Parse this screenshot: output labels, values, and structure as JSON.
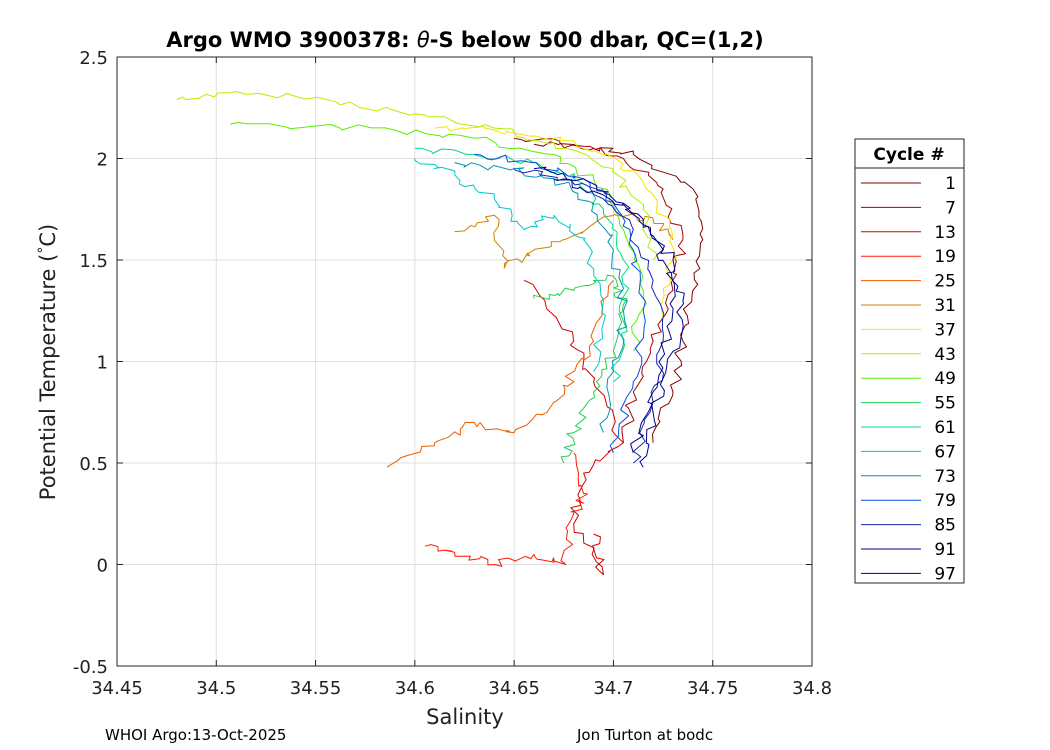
{
  "chart_data": {
    "type": "line",
    "title_prefix": "Argo WMO 3900378: ",
    "title_symbol": "θ",
    "title_suffix": "-S below 500 dbar,  QC=(1,2)",
    "xlabel": "Salinity",
    "ylabel_prefix": "Potential Temperature (",
    "ylabel_degree": "°",
    "ylabel_suffix": "C)",
    "xlim": [
      34.45,
      34.8
    ],
    "ylim": [
      -0.5,
      2.5
    ],
    "x_ticks": [
      34.45,
      34.5,
      34.55,
      34.6,
      34.65,
      34.7,
      34.75,
      34.8
    ],
    "x_tick_labels": [
      "34.45",
      "34.5",
      "34.55",
      "34.6",
      "34.65",
      "34.7",
      "34.75",
      "34.8"
    ],
    "y_ticks": [
      -0.5,
      0,
      0.5,
      1,
      1.5,
      2,
      2.5
    ],
    "y_tick_labels": [
      "-0.5",
      "0",
      "0.5",
      "1",
      "1.5",
      "2",
      "2.5"
    ],
    "grid": true,
    "legend": {
      "title": "Cycle #",
      "placement": "right",
      "entries": [
        "1",
        "7",
        "13",
        "19",
        "25",
        "31",
        "37",
        "43",
        "49",
        "55",
        "61",
        "67",
        "73",
        "79",
        "85",
        "91",
        "97"
      ],
      "colors": [
        "#800000",
        "#aa0000",
        "#d40000",
        "#ff1a00",
        "#f25a00",
        "#d08000",
        "#f2e600",
        "#b4f000",
        "#5aed00",
        "#1ed250",
        "#00dc82",
        "#00c8c8",
        "#0096b4",
        "#0050e6",
        "#1428aa",
        "#00008c",
        "#00008c"
      ]
    },
    "series": [
      {
        "name": "1",
        "color": "#800000",
        "s": [
          34.66,
          34.69,
          34.71,
          34.74,
          34.745,
          34.74,
          34.735,
          34.73,
          34.72
        ],
        "t": [
          2.07,
          2.05,
          2.02,
          1.85,
          1.6,
          1.35,
          1.1,
          0.85,
          0.6
        ]
      },
      {
        "name": "7",
        "color": "#aa0000",
        "s": [
          34.65,
          34.685,
          34.705,
          34.725,
          34.735,
          34.73,
          34.72,
          34.71,
          34.705
        ],
        "t": [
          2.1,
          2.06,
          2.0,
          1.85,
          1.6,
          1.35,
          1.1,
          0.85,
          0.6
        ]
      },
      {
        "name": "13",
        "color": "#d40000",
        "s": [
          34.655,
          34.68,
          34.69,
          34.705,
          34.685,
          34.68,
          34.695,
          34.69
        ],
        "t": [
          1.4,
          1.1,
          0.9,
          0.6,
          0.45,
          0.2,
          -0.05,
          0.15
        ]
      },
      {
        "name": "19",
        "color": "#ff1a00",
        "s": [
          34.605,
          34.62,
          34.64,
          34.66,
          34.676,
          34.68,
          34.685,
          34.68
        ],
        "t": [
          0.09,
          0.06,
          0.0,
          0.05,
          0.0,
          0.25,
          0.35,
          0.55
        ]
      },
      {
        "name": "25",
        "color": "#f25a00",
        "s": [
          34.586,
          34.61,
          34.63,
          34.65,
          34.67,
          34.68,
          34.69,
          34.7
        ],
        "t": [
          0.48,
          0.6,
          0.7,
          0.65,
          0.8,
          0.95,
          1.1,
          1.4
        ]
      },
      {
        "name": "31",
        "color": "#d08000",
        "s": [
          34.62,
          34.64,
          34.645,
          34.66,
          34.68,
          34.7,
          34.72,
          34.73
        ],
        "t": [
          1.64,
          1.72,
          1.46,
          1.55,
          1.62,
          1.72,
          1.7,
          1.6
        ]
      },
      {
        "name": "37",
        "color": "#f2e600",
        "s": [
          34.61,
          34.64,
          34.67,
          34.69,
          34.71,
          34.725,
          34.73,
          34.725
        ],
        "t": [
          2.15,
          2.14,
          2.1,
          2.04,
          1.94,
          1.72,
          1.5,
          1.2
        ]
      },
      {
        "name": "43",
        "color": "#b4f000",
        "s": [
          34.48,
          34.51,
          34.56,
          34.6,
          34.64,
          34.67,
          34.7,
          34.715,
          34.72
        ],
        "t": [
          2.29,
          2.33,
          2.28,
          2.22,
          2.15,
          2.08,
          1.95,
          1.75,
          1.5
        ]
      },
      {
        "name": "49",
        "color": "#5aed00",
        "s": [
          34.507,
          34.55,
          34.59,
          34.63,
          34.67,
          34.69,
          34.705,
          34.715,
          34.71
        ],
        "t": [
          2.17,
          2.16,
          2.14,
          2.1,
          2.02,
          1.9,
          1.65,
          1.35,
          1.05
        ]
      },
      {
        "name": "55",
        "color": "#1ed250",
        "s": [
          34.66,
          34.68,
          34.7,
          34.705,
          34.7,
          34.69,
          34.68,
          34.675
        ],
        "t": [
          1.31,
          1.35,
          1.42,
          1.28,
          1.05,
          0.85,
          0.65,
          0.5
        ]
      },
      {
        "name": "61",
        "color": "#00dc82",
        "s": [
          34.6,
          34.63,
          34.66,
          34.68,
          34.695,
          34.705,
          34.705,
          34.7
        ],
        "t": [
          2.05,
          2.02,
          1.98,
          1.9,
          1.75,
          1.5,
          1.2,
          0.9
        ]
      },
      {
        "name": "67",
        "color": "#00c8c8",
        "s": [
          34.6,
          34.62,
          34.64,
          34.655,
          34.67,
          34.685,
          34.695,
          34.69
        ],
        "t": [
          2.0,
          1.92,
          1.8,
          1.65,
          1.72,
          1.6,
          1.3,
          0.95
        ]
      },
      {
        "name": "73",
        "color": "#0096b4",
        "s": [
          34.62,
          34.65,
          34.67,
          34.69,
          34.7,
          34.705,
          34.7,
          34.695
        ],
        "t": [
          1.98,
          1.95,
          1.9,
          1.78,
          1.55,
          1.25,
          0.95,
          0.65
        ]
      },
      {
        "name": "79",
        "color": "#0050e6",
        "s": [
          34.63,
          34.66,
          34.685,
          34.7,
          34.71,
          34.715,
          34.71,
          34.7
        ],
        "t": [
          2.02,
          1.98,
          1.9,
          1.78,
          1.55,
          1.25,
          0.9,
          0.55
        ]
      },
      {
        "name": "85",
        "color": "#1428aa",
        "s": [
          34.65,
          34.675,
          34.695,
          34.71,
          34.72,
          34.725,
          34.72,
          34.71
        ],
        "t": [
          1.95,
          1.9,
          1.8,
          1.65,
          1.4,
          1.1,
          0.8,
          0.5
        ]
      },
      {
        "name": "91",
        "color": "#00008c",
        "s": [
          34.66,
          34.685,
          34.705,
          34.72,
          34.73,
          34.728,
          34.72,
          34.71
        ],
        "t": [
          1.95,
          1.9,
          1.78,
          1.62,
          1.4,
          1.15,
          0.85,
          0.55
        ]
      },
      {
        "name": "97",
        "color": "#00008c",
        "s": [
          34.67,
          34.695,
          34.715,
          34.73,
          34.735,
          34.73,
          34.72,
          34.715
        ],
        "t": [
          1.9,
          1.82,
          1.7,
          1.5,
          1.3,
          1.05,
          0.75,
          0.48
        ]
      }
    ]
  },
  "footer": {
    "left": "WHOI Argo:13-Oct-2025",
    "right": "Jon Turton at bodc"
  }
}
